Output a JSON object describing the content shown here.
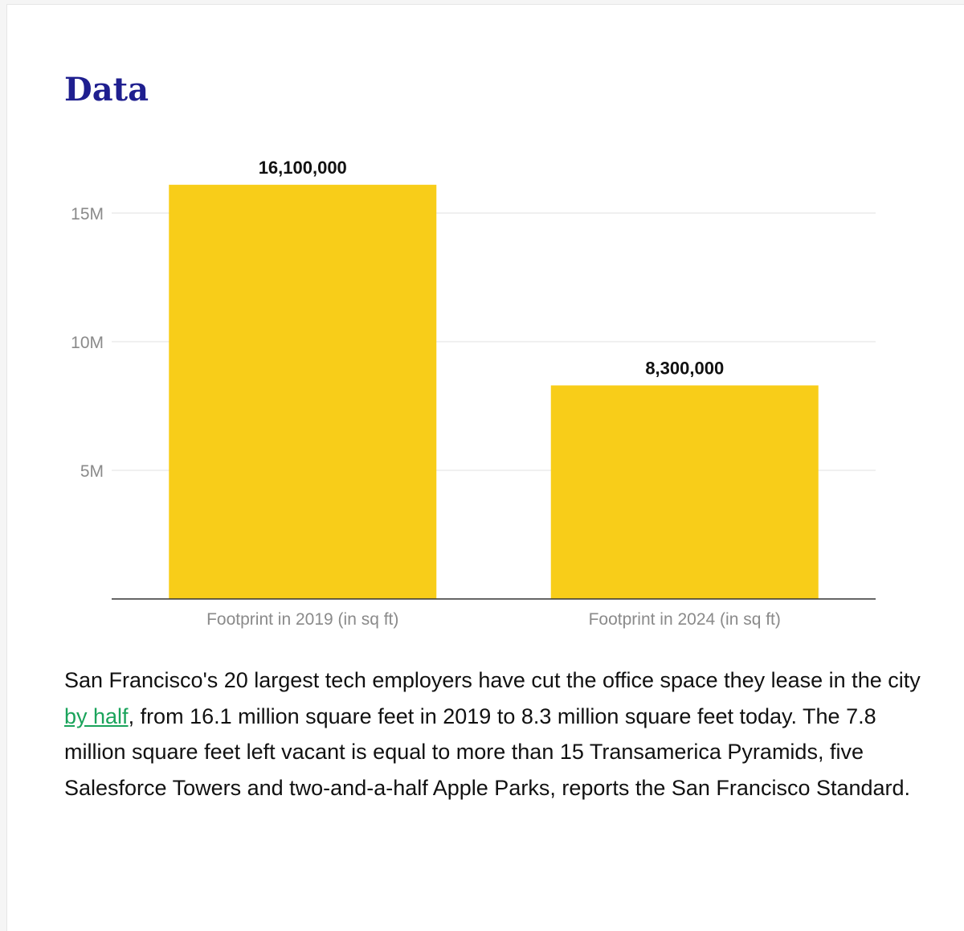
{
  "heading": "Data",
  "colors": {
    "heading": "#1f1f8f",
    "bar": "#f8cd19",
    "link": "#1aa35b",
    "grid": "#e2e2e2",
    "tick_label": "#8a8a8a",
    "data_label": "#111111"
  },
  "chart_data": {
    "type": "bar",
    "categories": [
      "Footprint in 2019 (in sq ft)",
      "Footprint in 2024 (in sq ft)"
    ],
    "values": [
      16100000,
      8300000
    ],
    "data_labels": [
      "16,100,000",
      "8,300,000"
    ],
    "y_ticks": [
      5000000,
      10000000,
      15000000
    ],
    "y_tick_labels": [
      "5M",
      "10M",
      "15M"
    ],
    "ylim": [
      0,
      17000000
    ],
    "grid": true,
    "legend": "none",
    "title": "",
    "xlabel": "",
    "ylabel": ""
  },
  "paragraph": {
    "before_link": "San Francisco's 20 largest tech employers have cut the office space they lease in the city ",
    "link_text": "by half",
    "after_link": ", from 16.1 million square feet in 2019 to 8.3 million square feet today. The 7.8 million square feet left vacant is equal to more than 15 Transamerica Pyramids, five Salesforce Towers and two-and-a-half Apple Parks, reports the San Francisco Standard."
  }
}
